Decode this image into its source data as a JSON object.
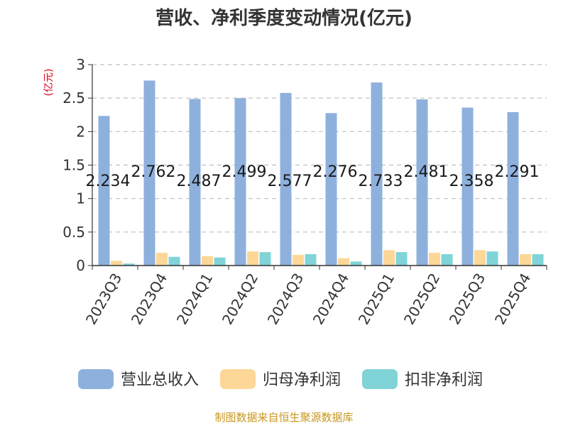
{
  "chart_data": {
    "type": "bar",
    "title": "营收、净利季度变动情况(亿元)",
    "ylabel": "(亿元)",
    "xlabel": "",
    "ylim": [
      0,
      3
    ],
    "yticks": [
      "0",
      "0.5",
      "1",
      "1.5",
      "2",
      "2.5",
      "3"
    ],
    "ytick_values": [
      0,
      0.5,
      1,
      1.5,
      2,
      2.5,
      3
    ],
    "grid": true,
    "legend_position": "bottom",
    "categories": [
      "2023Q3",
      "2023Q4",
      "2024Q1",
      "2024Q2",
      "2024Q3",
      "2024Q4",
      "2025Q1",
      "2025Q2",
      "2025Q3",
      "2025Q4"
    ],
    "series": [
      {
        "name": "营业总收入",
        "color": "#8eb0dd",
        "values": [
          2.234,
          2.762,
          2.487,
          2.499,
          2.577,
          2.276,
          2.733,
          2.481,
          2.358,
          2.291
        ],
        "labels": [
          "2.234",
          "2.762",
          "2.487",
          "2.499",
          "2.577",
          "2.276",
          "2.733",
          "2.481",
          "2.358",
          "2.291"
        ]
      },
      {
        "name": "归母净利润",
        "color": "#fdd797",
        "values": [
          0.07,
          0.19,
          0.14,
          0.21,
          0.16,
          0.11,
          0.23,
          0.19,
          0.23,
          0.17
        ]
      },
      {
        "name": "扣非净利润",
        "color": "#80d4d8",
        "values": [
          0.03,
          0.13,
          0.12,
          0.2,
          0.17,
          0.06,
          0.2,
          0.17,
          0.21,
          0.17
        ]
      }
    ]
  },
  "footer": {
    "source": "制图数据来自恒生聚源数据库"
  }
}
